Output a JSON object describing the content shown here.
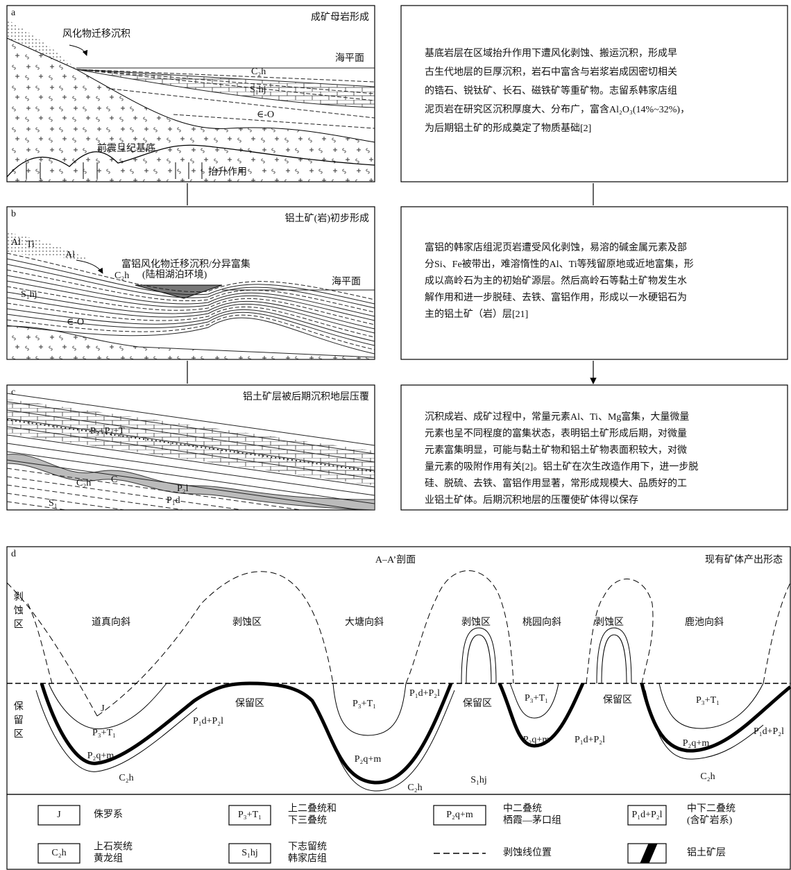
{
  "panels": [
    {
      "label": "a",
      "title": "成矿母岩形成",
      "notes": [
        "风化物迁移沉积",
        "海平面",
        "前震旦纪基底",
        "抬升作用",
        "C₂h",
        "S₁hj",
        "∈-O"
      ]
    },
    {
      "label": "b",
      "title": "铝土矿(岩)初步形成",
      "notes": [
        "富铝风化物迁移沉积/分异富集",
        "(陆相湖泊环境)",
        "海平面",
        "Al",
        "Ti",
        "Al",
        "S₁hj",
        "C₂h",
        "∈-O"
      ]
    },
    {
      "label": "c",
      "title": "铝土矿层被后期沉积地层压覆",
      "notes": [
        "P₃+P₁+T",
        "C₂h",
        "P₂l",
        "P₁d",
        "S₁",
        "C"
      ]
    }
  ],
  "descriptions": [
    {
      "lines": [
        "基底岩层在区域抬升作用下遭风化剥蚀、搬运沉积，形成早",
        "古生代地层的巨厚沉积，岩石中富含与岩浆岩成因密切相关",
        "的锆石、锐钛矿、长石、磁铁矿等重矿物。志留系韩家店组",
        "泥页岩在研究区沉积厚度大、分布广，富含Al₂O₃(14%~32%)，",
        "为后期铝土矿的形成奠定了物质基础[2]"
      ]
    },
    {
      "lines": [
        "富铝的韩家店组泥页岩遭受风化剥蚀，易溶的碱金属元素及部",
        "分Si、Fe被带出，难溶惰性的Al、Ti等残留原地或近地富集，形",
        "成以高岭石为主的初始矿源层。然后高岭石等黏土矿物发生水",
        "解作用和进一步脱硅、去铁、富铝作用，形成以一水硬铝石为",
        "主的铝土矿（岩）层[21]"
      ]
    },
    {
      "lines": [
        "沉积成岩、成矿过程中，常量元素Al、Ti、Mg富集，大量微量",
        "元素也呈不同程度的富集状态，表明铝土矿形成后期，对微量",
        "元素富集明显，可能与黏土矿物和铝土矿物表面积较大，对微",
        "量元素的吸附作用有关[2]。铝土矿在次生改造作用下，进一步脱",
        "硅、脱硫、去铁、富铝作用显著，常形成规模大、品质好的工",
        "业铝土矿体。后期沉积地层的压覆使矿体得以保存"
      ]
    }
  ],
  "section": {
    "label": "d",
    "title": "A–A’剖面",
    "subtitle": "现有矿体产出形态",
    "side_labels": [
      "剥蚀区",
      "保留区"
    ],
    "regions": [
      "道真向斜",
      "剥蚀区",
      "大塘向斜",
      "剥蚀区",
      "桃园向斜",
      "剥蚀区",
      "鹿池向斜"
    ],
    "formations": [
      "J",
      "P₃+T₁",
      "P₂q+m",
      "C₂h",
      "P₁d+P₂l",
      "保留区",
      "P₃+T₁",
      "P₁d+P₂l",
      "保留区",
      "P₂q+m",
      "C₂h",
      "S₁hj",
      "P₃+T₁",
      "P₂q+m",
      "P₁d+P₂l",
      "保留区",
      "P₃+T₁",
      "P₂q+m",
      "C₂h",
      "P₁d+P₂l"
    ],
    "legend": [
      {
        "symbol": "J",
        "text": [
          "侏罗系"
        ]
      },
      {
        "symbol": "P₃+T₁",
        "text": [
          "上二叠统和",
          "下三叠统"
        ]
      },
      {
        "symbol": "P₂q+m",
        "text": [
          "中二叠统",
          "栖霞—茅口组"
        ]
      },
      {
        "symbol": "P₁d+P₂l",
        "text": [
          "中下二叠统",
          "(含矿岩系)"
        ]
      },
      {
        "symbol": "C₂h",
        "text": [
          "上石炭统",
          "黄龙组"
        ]
      },
      {
        "symbol": "S₁hj",
        "text": [
          "下志留统",
          "韩家店组"
        ]
      },
      {
        "text": [
          "剥蚀线位置"
        ]
      },
      {
        "text": [
          "铝土矿层"
        ]
      }
    ]
  }
}
